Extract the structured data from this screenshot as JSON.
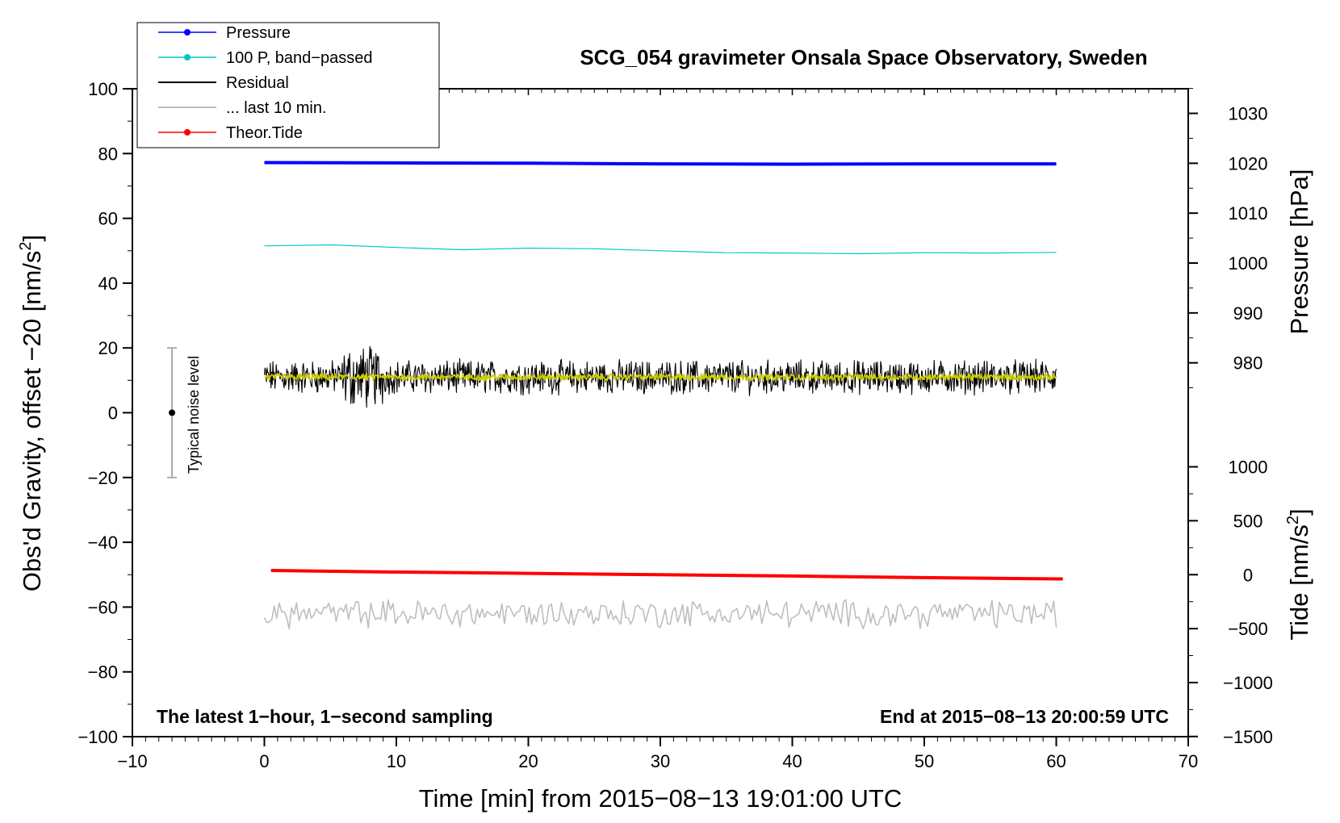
{
  "chart_data": {
    "type": "line",
    "title": "SCG_054 gravimeter Onsala Space Observatory, Sweden",
    "xlabel": "Time [min] from 2015−08−13 19:01:00 UTC",
    "ylabel_left": "Obs'd Gravity, offset −20 [nm/s",
    "ylabel_left_sup": "2",
    "ylabel_left_end": "]",
    "ylabel_right_top": "Pressure [hPa]",
    "ylabel_right_bottom": "Tide [nm/s",
    "ylabel_right_bottom_sup": "2",
    "ylabel_right_bottom_end": "]",
    "xlim": [
      -10,
      70
    ],
    "ylim_left": [
      -100,
      100
    ],
    "x_ticks": [
      -10,
      0,
      10,
      20,
      30,
      40,
      50,
      60,
      70
    ],
    "x_tick_labels": [
      "−10",
      "0",
      "10",
      "20",
      "30",
      "40",
      "50",
      "60",
      "70"
    ],
    "y_ticks": [
      100,
      80,
      60,
      40,
      20,
      0,
      -20,
      -40,
      -60,
      -80,
      -100
    ],
    "y_tick_labels": [
      "100",
      "80",
      "60",
      "40",
      "20",
      "0",
      "−20",
      "−40",
      "−60",
      "−80",
      "−100"
    ],
    "pressure_axis": {
      "ticks": [
        1030,
        1020,
        1010,
        1000,
        990,
        980
      ],
      "tick_labels": [
        "1030",
        "1020",
        "1010",
        "1000",
        "990",
        "980"
      ],
      "left_at_1020": 77,
      "left_per_hpa": 1.54
    },
    "tide_axis": {
      "ticks": [
        1000,
        500,
        0,
        -500,
        -1000,
        -1500
      ],
      "tick_labels": [
        "1000",
        "500",
        "0",
        "−500",
        "−1000",
        "−1500"
      ],
      "left_at_0": -50,
      "left_per_unit": 0.0333
    },
    "annotation_left": "The latest 1−hour, 1−second sampling",
    "annotation_right": "End at 2015−08−13 20:00:59 UTC",
    "noise_label": "Typical noise level",
    "noise_bar": {
      "x": -7,
      "center": 0,
      "low": -20,
      "high": 20
    },
    "legend": [
      {
        "label": "Pressure",
        "color": "#0000ff",
        "marker": true
      },
      {
        "label": "100 P, band−passed",
        "color": "#00c8c8",
        "marker": true
      },
      {
        "label": "Residual",
        "color": "#000000",
        "marker": false
      },
      {
        "label": "... last 10 min.",
        "color": "#bebebe",
        "marker": false
      },
      {
        "label": "Theor.Tide",
        "color": "#ff0000",
        "marker": true
      }
    ],
    "series": [
      {
        "name": "Pressure",
        "color": "#0000ff",
        "width": 4,
        "x": [
          0,
          10,
          20,
          30,
          40,
          50,
          60
        ],
        "y": [
          77.2,
          77.1,
          77.0,
          76.8,
          76.7,
          76.8,
          76.8
        ]
      },
      {
        "name": "100 P, band−passed",
        "color": "#00c8c8",
        "width": 1.2,
        "x": [
          0,
          5,
          10,
          15,
          20,
          25,
          30,
          35,
          40,
          45,
          50,
          55,
          60
        ],
        "y": [
          51.5,
          51.8,
          51.0,
          50.3,
          50.8,
          50.6,
          50.0,
          49.4,
          49.3,
          49.1,
          49.4,
          49.3,
          49.5
        ]
      },
      {
        "name": "Residual",
        "color": "#000000",
        "width": 1.1,
        "synthetic": "noise",
        "center": 11,
        "amp": 4.2,
        "x0": 0,
        "x1": 60
      },
      {
        "name": "Residual smoothed",
        "color": "#cccc00",
        "width": 1.6,
        "synthetic": "noise",
        "center": 11,
        "amp": 0.9,
        "x0": 0,
        "x1": 60
      },
      {
        "name": "... last 10 min.",
        "color": "#bebebe",
        "width": 1.6,
        "synthetic": "noise",
        "center": -62,
        "amp": 3.5,
        "x0": 0,
        "x1": 60
      },
      {
        "name": "Theor.Tide",
        "color": "#ff0000",
        "width": 4,
        "x": [
          0.5,
          10,
          20,
          30,
          40,
          50,
          60.5
        ],
        "y": [
          -48.7,
          -49.2,
          -49.6,
          -50.0,
          -50.4,
          -50.9,
          -51.3
        ]
      }
    ]
  }
}
